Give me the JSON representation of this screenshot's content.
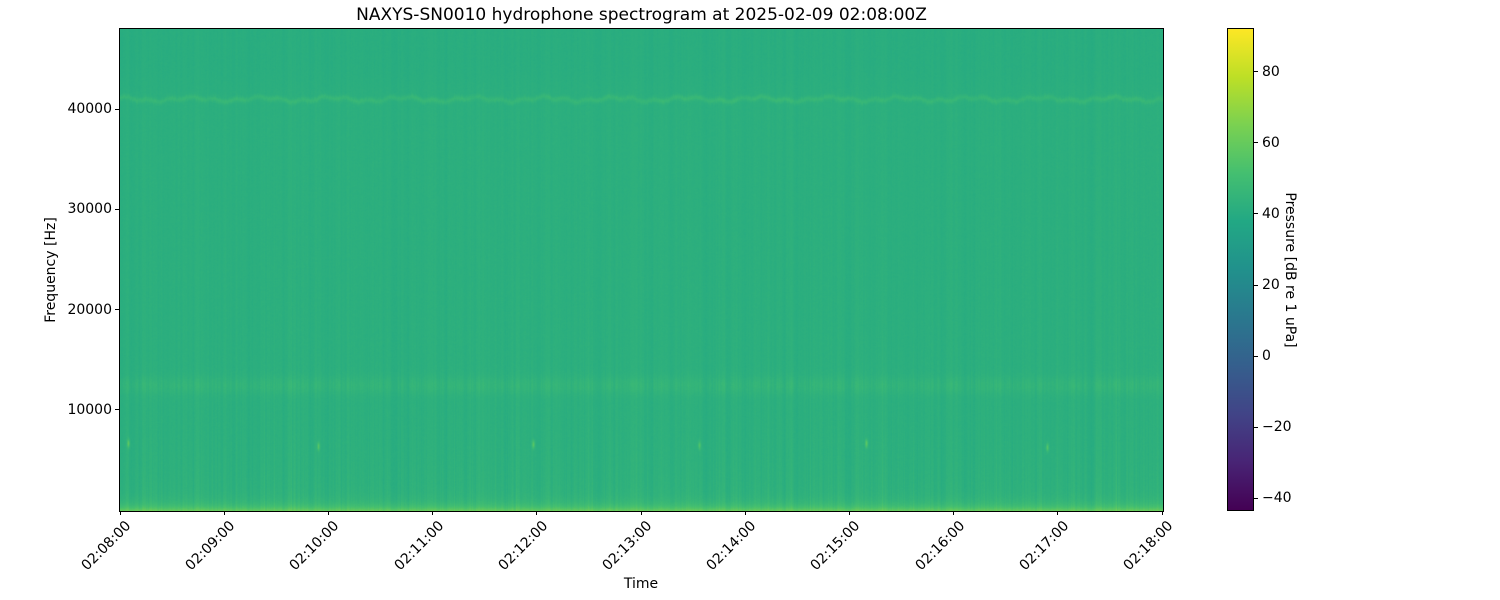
{
  "chart_data": {
    "type": "heatmap",
    "subtype": "spectrogram",
    "title": "NAXYS-SN0010 hydrophone spectrogram at 2025-02-09 02:08:00Z",
    "xlabel": "Time",
    "ylabel": "Frequency [Hz]",
    "x_ticks": [
      "02:08:00",
      "02:09:00",
      "02:10:00",
      "02:11:00",
      "02:12:00",
      "02:13:00",
      "02:14:00",
      "02:15:00",
      "02:16:00",
      "02:17:00",
      "02:18:00"
    ],
    "y_ticks": [
      {
        "value": 10000,
        "label": "10000"
      },
      {
        "value": 20000,
        "label": "20000"
      },
      {
        "value": 30000,
        "label": "30000"
      },
      {
        "value": 40000,
        "label": "40000"
      }
    ],
    "ylim": [
      0,
      48000
    ],
    "xlim": [
      "02:08:00",
      "02:18:00"
    ],
    "grid": false,
    "colormap": "viridis",
    "colorbar": {
      "label": "Pressure [dB re 1 uPa]",
      "position": "right",
      "vmin": -43,
      "vmax": 92,
      "ticks": [
        {
          "value": 80,
          "label": "80"
        },
        {
          "value": 60,
          "label": "60"
        },
        {
          "value": 40,
          "label": "40"
        },
        {
          "value": 20,
          "label": "20"
        },
        {
          "value": 0,
          "label": "0"
        },
        {
          "value": -20,
          "label": "−20"
        },
        {
          "value": -40,
          "label": "−40"
        }
      ]
    },
    "content": {
      "background_level_db": 42,
      "pixel_noise_db": 1.3,
      "stripe_db": 2.2,
      "stripe_lowfreq_boost_hz": 12000,
      "top_shade_db": 0.8,
      "top_shade_onset_hz": 42500,
      "bands": [
        {
          "name": "surface-broadband",
          "type": "lowpass-exp",
          "center_hz": 0,
          "sigma_hz": 500,
          "amp_db": 18
        },
        {
          "name": "low-ambient",
          "type": "lowpass-exp",
          "center_hz": 0,
          "sigma_hz": 5000,
          "amp_db": 1.5
        },
        {
          "name": "mid-band-12500hz",
          "type": "gauss",
          "center_hz": 12500,
          "sigma_hz": 900,
          "amp_db": 2.5
        },
        {
          "name": "tonal-41khz",
          "type": "gauss",
          "center_hz": 41000,
          "sigma_hz": 260,
          "amp_db": 4.5,
          "wobble_hz": 200,
          "intermittent": true
        }
      ],
      "transients": [
        {
          "x_frac": 0.008,
          "freq_hz": 6700,
          "amp_db": 16
        },
        {
          "x_frac": 0.19,
          "freq_hz": 6400,
          "amp_db": 14
        },
        {
          "x_frac": 0.396,
          "freq_hz": 6600,
          "amp_db": 15
        },
        {
          "x_frac": 0.556,
          "freq_hz": 6500,
          "amp_db": 12
        },
        {
          "x_frac": 0.716,
          "freq_hz": 6700,
          "amp_db": 16
        },
        {
          "x_frac": 0.89,
          "freq_hz": 6300,
          "amp_db": 14
        }
      ],
      "viridis_stops": [
        "#440154",
        "#482475",
        "#414487",
        "#355f8d",
        "#2a788e",
        "#21918c",
        "#22a884",
        "#44bf70",
        "#7ad151",
        "#bddf26",
        "#fde725"
      ]
    }
  }
}
